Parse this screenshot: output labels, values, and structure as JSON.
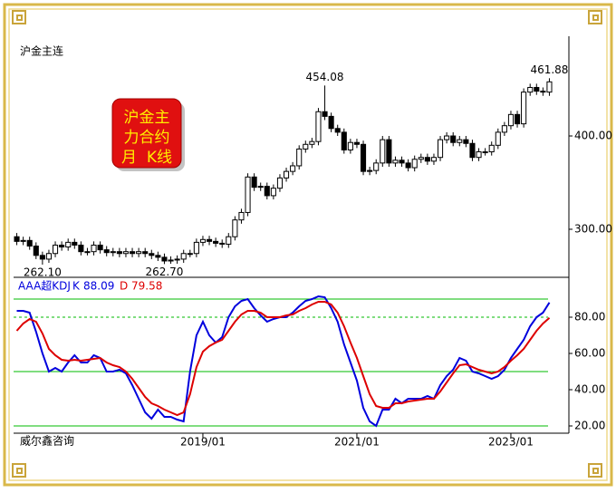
{
  "chart_data": [
    {
      "type": "candlestick",
      "title": "沪金主连",
      "badge": [
        "沪金主",
        "力合约",
        "月  K线"
      ],
      "source": "威尔鑫咨询",
      "up_color": "#ffffff",
      "down_color": "#000000",
      "categories": [
        "2016/08",
        "2016/09",
        "2016/10",
        "2016/11",
        "2016/12",
        "2017/01",
        "2017/02",
        "2017/03",
        "2017/04",
        "2017/05",
        "2017/06",
        "2017/07",
        "2017/08",
        "2017/09",
        "2017/10",
        "2017/11",
        "2017/12",
        "2018/01",
        "2018/02",
        "2018/03",
        "2018/04",
        "2018/05",
        "2018/06",
        "2018/07",
        "2018/08",
        "2018/09",
        "2018/10",
        "2018/11",
        "2018/12",
        "2019/01",
        "2019/02",
        "2019/03",
        "2019/04",
        "2019/05",
        "2019/06",
        "2019/07",
        "2019/08",
        "2019/09",
        "2019/10",
        "2019/11",
        "2019/12",
        "2020/01",
        "2020/02",
        "2020/03",
        "2020/04",
        "2020/05",
        "2020/06",
        "2020/07",
        "2020/08",
        "2020/09",
        "2020/10",
        "2020/11",
        "2020/12",
        "2021/01",
        "2021/02",
        "2021/03",
        "2021/04",
        "2021/05",
        "2021/06",
        "2021/07",
        "2021/08",
        "2021/09",
        "2021/10",
        "2021/11",
        "2021/12",
        "2022/01",
        "2022/02",
        "2022/03",
        "2022/04",
        "2022/05",
        "2022/06",
        "2022/07",
        "2022/08",
        "2022/09",
        "2022/10",
        "2022/11",
        "2022/12",
        "2023/01",
        "2023/02",
        "2023/03",
        "2023/04",
        "2023/05",
        "2023/06",
        "2023/07"
      ],
      "open": [
        292,
        287,
        288,
        282,
        272,
        268,
        274,
        283,
        281,
        286,
        283,
        276,
        276,
        283,
        278,
        275,
        276,
        274,
        276,
        274,
        276,
        274,
        272,
        270,
        266,
        267,
        268,
        274,
        274,
        286,
        289,
        287,
        285,
        284,
        292,
        310,
        318,
        356,
        345,
        346,
        336,
        344,
        355,
        362,
        368,
        386,
        391,
        394,
        426,
        421,
        408,
        404,
        385,
        393,
        391,
        362,
        363,
        371,
        396,
        371,
        374,
        371,
        366,
        375,
        377,
        373,
        377,
        396,
        400,
        393,
        396,
        392,
        377,
        383,
        383,
        390,
        404,
        411,
        423,
        413,
        447,
        452,
        448,
        447
      ],
      "high": [
        296,
        292,
        292,
        286,
        276,
        278,
        287,
        287,
        290,
        290,
        287,
        280,
        287,
        287,
        282,
        280,
        280,
        280,
        280,
        280,
        280,
        278,
        276,
        274,
        271,
        272,
        278,
        278,
        290,
        293,
        293,
        291,
        289,
        296,
        314,
        322,
        360,
        360,
        350,
        350,
        348,
        359,
        366,
        372,
        390,
        395,
        398,
        430,
        454.08,
        425,
        412,
        408,
        397,
        397,
        395,
        367,
        375,
        400,
        400,
        378,
        378,
        375,
        379,
        381,
        381,
        381,
        400,
        404,
        404,
        400,
        400,
        396,
        387,
        387,
        394,
        408,
        415,
        427,
        427,
        451,
        456,
        456,
        452,
        461.88
      ],
      "low": [
        283,
        283,
        278,
        268,
        262.1,
        264,
        270,
        277,
        277,
        279,
        272,
        272,
        272,
        274,
        271,
        271,
        270,
        270,
        270,
        270,
        270,
        268,
        266,
        262.7,
        263,
        263,
        264,
        270,
        270,
        282,
        283,
        281,
        280,
        280,
        288,
        306,
        314,
        341,
        341,
        332,
        332,
        340,
        351,
        358,
        364,
        382,
        387,
        390,
        417,
        404,
        400,
        381,
        381,
        387,
        358,
        358,
        359,
        367,
        367,
        367,
        367,
        362,
        362,
        371,
        369,
        369,
        373,
        392,
        389,
        389,
        388,
        373,
        373,
        379,
        379,
        386,
        400,
        407,
        409,
        409,
        443,
        444,
        443,
        443
      ],
      "close": [
        287,
        288,
        282,
        272,
        268,
        274,
        283,
        281,
        286,
        283,
        276,
        276,
        283,
        278,
        275,
        276,
        274,
        276,
        274,
        276,
        274,
        272,
        270,
        266,
        267,
        268,
        274,
        274,
        286,
        289,
        287,
        285,
        284,
        292,
        310,
        318,
        356,
        345,
        346,
        336,
        344,
        355,
        362,
        368,
        386,
        391,
        394,
        426,
        421,
        408,
        404,
        385,
        393,
        391,
        362,
        363,
        371,
        396,
        371,
        374,
        371,
        366,
        375,
        377,
        373,
        377,
        396,
        400,
        393,
        396,
        392,
        377,
        383,
        383,
        390,
        404,
        411,
        423,
        413,
        447,
        452,
        448,
        447,
        458
      ],
      "annotations": [
        {
          "value": 262.1,
          "label": "262.10"
        },
        {
          "value": 262.7,
          "label": "262.70"
        },
        {
          "value": 454.08,
          "label": "454.08"
        },
        {
          "value": 461.88,
          "label": "461.88"
        }
      ],
      "ylim": [
        248.5,
        502
      ],
      "yticks": [
        {
          "value": 300,
          "label": "300.00"
        },
        {
          "value": 400,
          "label": "400.00"
        }
      ]
    },
    {
      "type": "line",
      "title": "AAA超KDJ",
      "series": [
        {
          "name": "K",
          "color": "#0000dd",
          "values": [
            83.5,
            83.5,
            82.5,
            72,
            60,
            50,
            52,
            50,
            55,
            59,
            55,
            55,
            59,
            57.5,
            50,
            50,
            51,
            49,
            42.5,
            35,
            27.5,
            24,
            29,
            25,
            25,
            23.5,
            22.5,
            50,
            70,
            77.5,
            70,
            66,
            69,
            80,
            86,
            89,
            90,
            85,
            81,
            77.5,
            79,
            80,
            80,
            82.5,
            86,
            89,
            90,
            91.5,
            91,
            85,
            77.5,
            65,
            55,
            45,
            30,
            22.5,
            20,
            29,
            29,
            35,
            32.5,
            35,
            35,
            35,
            36.5,
            35,
            42.5,
            47.5,
            51,
            57.5,
            56,
            50,
            49,
            47.5,
            46,
            47.5,
            51,
            57.5,
            62.5,
            67.5,
            75,
            80,
            82.5,
            88.09
          ]
        },
        {
          "name": "D",
          "color": "#dd0000",
          "values": [
            72.5,
            76.5,
            79,
            77.5,
            71,
            62.5,
            59,
            56.5,
            56,
            56.5,
            56,
            56.5,
            57,
            57.5,
            55,
            53.5,
            52.5,
            50,
            46,
            41,
            36,
            32.5,
            31,
            29,
            27.5,
            26,
            27.5,
            37.5,
            52.5,
            61,
            64,
            66,
            67.5,
            72.5,
            77.5,
            81.5,
            83.5,
            83.5,
            82.5,
            80,
            80,
            80,
            81,
            81.5,
            83.5,
            85,
            87,
            88.5,
            88.5,
            87,
            82.5,
            75,
            66,
            57.5,
            47.5,
            37.5,
            31,
            30,
            30,
            32.5,
            32.5,
            33.5,
            34,
            34.5,
            35,
            35,
            39,
            44,
            49,
            53.5,
            54,
            52.5,
            51,
            50,
            49,
            50,
            52.5,
            56,
            59,
            62.5,
            67.5,
            72.5,
            76.5,
            79.58
          ]
        }
      ],
      "ref_lines": [
        90,
        50,
        20
      ],
      "dashed_lines": [
        80
      ],
      "ref_color": "#00bb00",
      "ylim": [
        16,
        101
      ],
      "yticks": [
        {
          "value": 20,
          "label": "20.00"
        },
        {
          "value": 40,
          "label": "40.00"
        },
        {
          "value": 60,
          "label": "60.00"
        },
        {
          "value": 80,
          "label": "80.00"
        }
      ],
      "xticks": [
        "2019/01",
        "2021/01",
        "2023/01"
      ]
    }
  ]
}
